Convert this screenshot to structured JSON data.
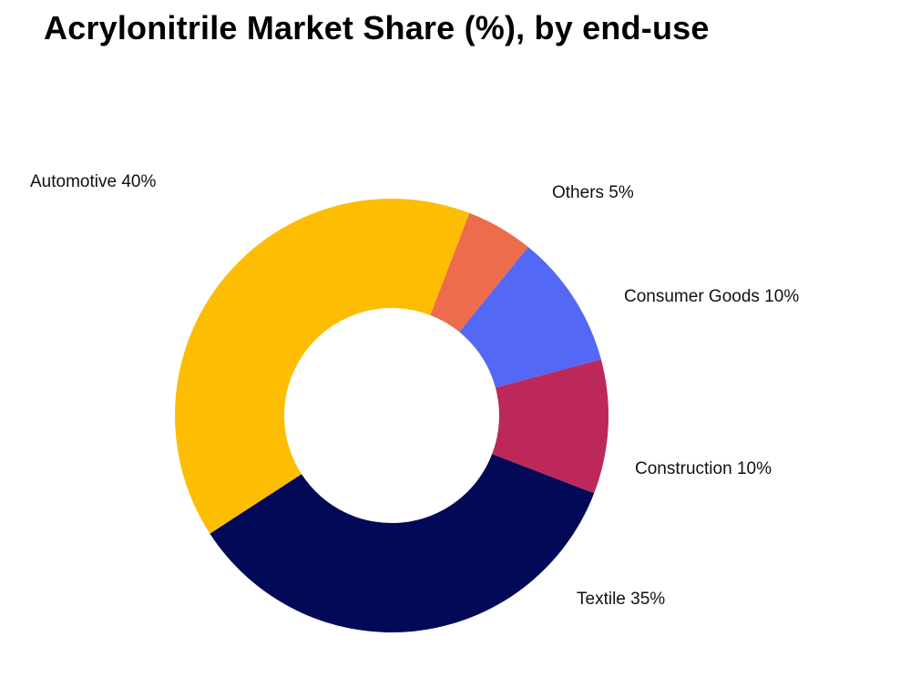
{
  "chart_data": {
    "type": "pie",
    "title": "Acrylonitrile Market Share (%), by end-use",
    "donut": true,
    "legend": "none",
    "slices": [
      {
        "label": "Others",
        "value": 5,
        "color": "#EC6C4C",
        "text": "Others 5%"
      },
      {
        "label": "Consumer Goods",
        "value": 10,
        "color": "#5468F6",
        "text": "Consumer Goods 10%"
      },
      {
        "label": "Construction",
        "value": 10,
        "color": "#BD285A",
        "text": "Construction 10%"
      },
      {
        "label": "Textile",
        "value": 35,
        "color": "#020957",
        "text": "Textile 35%"
      },
      {
        "label": "Automotive",
        "value": 40,
        "color": "#FDBD02",
        "text": "Automotive 40%"
      }
    ]
  }
}
